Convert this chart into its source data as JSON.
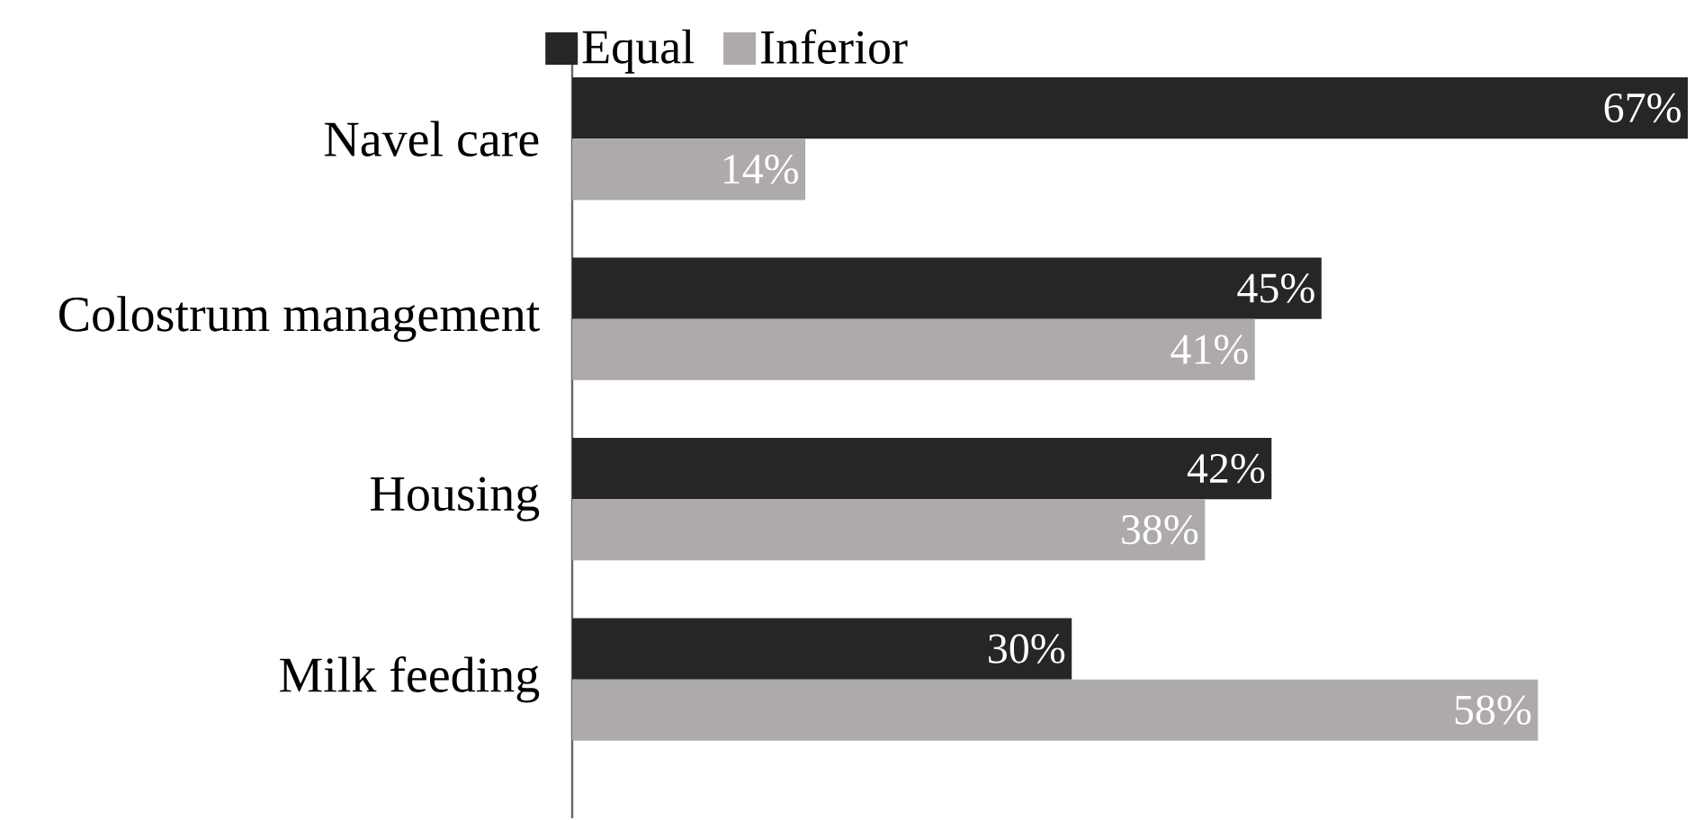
{
  "chart_data": {
    "type": "bar",
    "orientation": "horizontal",
    "categories": [
      "Navel care",
      "Colostrum management",
      "Housing",
      "Milk feeding"
    ],
    "series": [
      {
        "name": "Equal",
        "color": "#262626",
        "values": [
          67,
          45,
          42,
          30
        ],
        "value_labels": [
          "67%",
          "45%",
          "42%",
          "30%"
        ]
      },
      {
        "name": "Inferior",
        "color": "#aeaaaa",
        "values": [
          14,
          41,
          38,
          58
        ],
        "value_labels": [
          "14%",
          "41%",
          "38%",
          "58%"
        ]
      }
    ],
    "legend": "top"
  }
}
